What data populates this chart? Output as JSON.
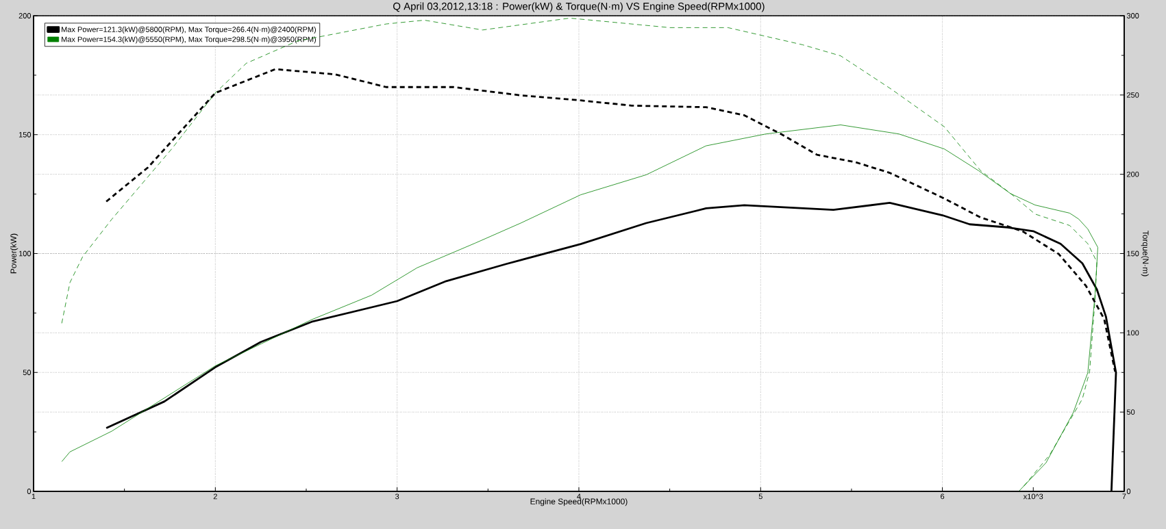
{
  "chart_data": {
    "type": "line",
    "title": "Q April 03,2012,13:18  : Power(kW) & Torque(N·m) VS Engine Speed(RPMx1000)",
    "xlabel": "Engine Speed(RPMx1000)",
    "ylabel": "Power(kW)",
    "y2label": "Torque(N·m)",
    "xlim": [
      1,
      7
    ],
    "xticks": [
      1,
      {
        "value": 1.5,
        "label": null
      },
      2,
      {
        "value": 2.5,
        "label": null
      },
      3,
      {
        "value": 3.5,
        "label": null
      },
      4,
      {
        "value": 4.5,
        "label": null
      },
      5,
      {
        "value": 5.5,
        "label": null
      },
      6,
      {
        "value": 6.5,
        "label": "x10^3"
      },
      7
    ],
    "ylim": [
      0,
      200
    ],
    "yticks": [
      0,
      {
        "value": 25,
        "label": null
      },
      50,
      {
        "value": 75,
        "label": null
      },
      100,
      {
        "value": 125,
        "label": null
      },
      150,
      {
        "value": 175,
        "label": null
      },
      200
    ],
    "y2lim": [
      0,
      300
    ],
    "y2ticks": [
      0,
      {
        "value": 25,
        "label": null
      },
      50,
      {
        "value": 75,
        "label": null
      },
      100,
      {
        "value": 125,
        "label": null
      },
      150,
      {
        "value": 175,
        "label": null
      },
      200,
      {
        "value": 225,
        "label": null
      },
      250,
      {
        "value": 275,
        "label": null
      },
      300
    ],
    "grid": true,
    "legend": "top left",
    "marker": "none",
    "series": [
      {
        "name": "Max Power=121.3(kW)@5800(RPM), Max Torque=266.4(N·m)@2400(RPM)",
        "color": "#000000",
        "line_style": "solid",
        "x": [
          1.4,
          1.72,
          2.0,
          2.25,
          2.53,
          3.0,
          3.27,
          3.6,
          4.01,
          4.37,
          4.7,
          4.91,
          5.4,
          5.71,
          6.0,
          6.15,
          6.36,
          6.5,
          6.65,
          6.77,
          6.85,
          6.9,
          6.955,
          6.93
        ],
        "values": [
          26.6,
          37.8,
          52.2,
          62.8,
          71.3,
          80,
          88.4,
          95.6,
          104,
          112.8,
          119,
          120.3,
          118.4,
          121.3,
          116.1,
          112.3,
          111,
          109.4,
          104.1,
          95.9,
          84.9,
          73.4,
          49.9,
          0
        ]
      },
      {
        "color": "#000000",
        "line_style": "dashed",
        "axis": "y2",
        "x": [
          1.4,
          1.63,
          2.0,
          2.33,
          2.66,
          2.94,
          3.31,
          3.68,
          4.01,
          4.29,
          4.7,
          4.91,
          5.11,
          5.31,
          5.52,
          5.71,
          6.0,
          6.21,
          6.44,
          6.64,
          6.79,
          6.89,
          6.95
        ],
        "values": [
          182.8,
          204.4,
          251.3,
          266.3,
          263,
          255,
          255,
          249.8,
          246.6,
          243.3,
          242.3,
          237.2,
          225.5,
          212.3,
          207.7,
          200.9,
          185.3,
          172.8,
          164.1,
          149.7,
          129.6,
          108.7,
          75.6
        ]
      },
      {
        "name": "Max Power=154.3(kW)@5550(RPM), Max Torque=298.5(N·m)@3950(RPM)",
        "color": "#008000",
        "line_style": "solid",
        "x": [
          1.155,
          1.2,
          1.43,
          2.0,
          2.53,
          2.86,
          3.11,
          3.43,
          3.68,
          4.01,
          4.37,
          4.7,
          5.03,
          5.44,
          5.76,
          6.01,
          6.2,
          6.375,
          6.51,
          6.7,
          6.75,
          6.8,
          6.855,
          6.84,
          6.8,
          6.72,
          6.57,
          6.42
        ],
        "values": [
          12.5,
          16.6,
          25.3,
          52.8,
          72.2,
          82.5,
          94,
          104.4,
          112.8,
          124.7,
          133.1,
          145.3,
          150.3,
          154.1,
          150.3,
          144,
          134.8,
          125.2,
          120.4,
          117,
          114.5,
          110.3,
          102.6,
          83,
          49.9,
          33.1,
          12,
          0
        ]
      },
      {
        "color": "#008000",
        "line_style": "dashed",
        "axis": "y2",
        "x": [
          1.155,
          1.2,
          1.27,
          1.43,
          1.76,
          2.0,
          2.17,
          2.45,
          2.94,
          3.15,
          3.47,
          3.95,
          4.5,
          4.82,
          5.23,
          5.44,
          5.72,
          6.01,
          6.21,
          6.375,
          6.51,
          6.7,
          6.8,
          6.85,
          6.84,
          6.81,
          6.77,
          6.59,
          6.44
        ],
        "values": [
          106,
          131.7,
          148,
          171.6,
          216,
          251.3,
          270,
          284,
          294.8,
          297.2,
          291,
          298.5,
          292.5,
          292.5,
          281.7,
          274.7,
          253.6,
          230,
          202.3,
          187.9,
          174.9,
          167.7,
          156.2,
          144.7,
          121.6,
          75.6,
          58.3,
          23,
          2.2
        ]
      }
    ]
  }
}
